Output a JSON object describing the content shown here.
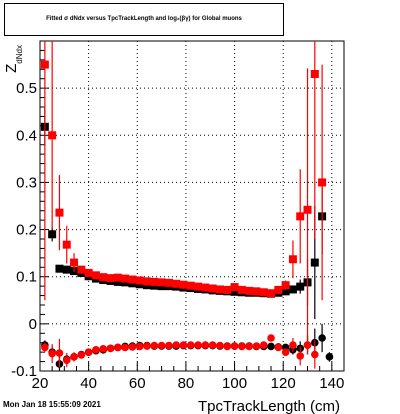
{
  "title": "Fitted σ dNdx versus TpcTrackLength and log₂(βγ) for Global muons",
  "footer": "Mon Jan 18 15:55:09 2021",
  "chart_data": {
    "type": "scatter",
    "xlabel": "TpcTrackLength (cm)",
    "ylabel": "Z dNdx",
    "xlim": [
      20,
      145
    ],
    "ylim": [
      -0.1,
      0.6
    ],
    "xticks": [
      20,
      40,
      60,
      80,
      100,
      120,
      140
    ],
    "yticks": [
      -0.1,
      0,
      0.1,
      0.2,
      0.3,
      0.4,
      0.5
    ],
    "grid": true,
    "series": [
      {
        "color": "#000000",
        "marker": "square",
        "x": [
          22,
          25,
          28,
          31,
          34,
          37,
          40,
          43,
          46,
          49,
          52,
          55,
          58,
          61,
          64,
          67,
          70,
          73,
          76,
          79,
          82,
          85,
          88,
          91,
          94,
          97,
          100,
          103,
          106,
          109,
          112,
          115,
          118,
          121,
          124,
          127,
          130,
          133,
          136
        ],
        "y": [
          0.418,
          0.19,
          0.117,
          0.115,
          0.112,
          0.108,
          0.101,
          0.096,
          0.093,
          0.091,
          0.089,
          0.088,
          0.086,
          0.084,
          0.082,
          0.081,
          0.08,
          0.08,
          0.079,
          0.077,
          0.076,
          0.074,
          0.073,
          0.071,
          0.07,
          0.069,
          0.068,
          0.067,
          0.066,
          0.066,
          0.065,
          0.064,
          0.066,
          0.069,
          0.073,
          0.079,
          0.088,
          0.13,
          0.228
        ],
        "err": [
          0.04,
          0.015,
          0.006,
          0.004,
          0.004,
          0.003,
          0.003,
          0.003,
          0.003,
          0.003,
          0.003,
          0.003,
          0.003,
          0.003,
          0.003,
          0.003,
          0.003,
          0.003,
          0.003,
          0.003,
          0.003,
          0.003,
          0.003,
          0.003,
          0.003,
          0.003,
          0.003,
          0.003,
          0.003,
          0.003,
          0.003,
          0.004,
          0.004,
          0.005,
          0.008,
          0.015,
          0.05,
          0.12,
          0.08
        ]
      },
      {
        "color": "#ff0000",
        "marker": "square",
        "x": [
          22,
          25,
          28,
          31,
          34,
          37,
          40,
          43,
          46,
          49,
          52,
          55,
          58,
          61,
          64,
          67,
          70,
          73,
          76,
          79,
          82,
          85,
          88,
          91,
          94,
          97,
          100,
          103,
          106,
          109,
          112,
          115,
          118,
          121,
          124,
          127,
          130,
          133,
          136
        ],
        "y": [
          0.55,
          0.4,
          0.236,
          0.168,
          0.13,
          0.115,
          0.108,
          0.103,
          0.099,
          0.097,
          0.098,
          0.096,
          0.094,
          0.092,
          0.09,
          0.089,
          0.088,
          0.087,
          0.085,
          0.083,
          0.081,
          0.079,
          0.077,
          0.075,
          0.073,
          0.072,
          0.078,
          0.072,
          0.07,
          0.069,
          0.067,
          0.065,
          0.072,
          0.082,
          0.137,
          0.228,
          0.242,
          0.53,
          0.3
        ],
        "err": [
          0.5,
          0.2,
          0.08,
          0.04,
          0.02,
          0.008,
          0.005,
          0.004,
          0.003,
          0.003,
          0.003,
          0.003,
          0.003,
          0.003,
          0.003,
          0.003,
          0.003,
          0.003,
          0.003,
          0.003,
          0.003,
          0.003,
          0.003,
          0.003,
          0.003,
          0.003,
          0.003,
          0.003,
          0.003,
          0.003,
          0.003,
          0.004,
          0.005,
          0.01,
          0.04,
          0.1,
          0.3,
          0.35,
          0.25
        ]
      },
      {
        "color": "#000000",
        "marker": "circle",
        "x": [
          22,
          25,
          28,
          31,
          34,
          37,
          40,
          43,
          46,
          49,
          52,
          55,
          58,
          61,
          64,
          67,
          70,
          73,
          76,
          79,
          82,
          85,
          88,
          91,
          94,
          97,
          100,
          103,
          106,
          109,
          112,
          115,
          118,
          121,
          124,
          127,
          130,
          133,
          136,
          139
        ],
        "y": [
          -0.045,
          -0.06,
          -0.085,
          -0.075,
          -0.07,
          -0.065,
          -0.06,
          -0.057,
          -0.055,
          -0.052,
          -0.05,
          -0.048,
          -0.047,
          -0.046,
          -0.046,
          -0.047,
          -0.047,
          -0.047,
          -0.047,
          -0.046,
          -0.046,
          -0.046,
          -0.046,
          -0.046,
          -0.047,
          -0.047,
          -0.047,
          -0.047,
          -0.047,
          -0.048,
          -0.048,
          -0.048,
          -0.049,
          -0.05,
          -0.055,
          -0.052,
          -0.045,
          -0.04,
          -0.03,
          -0.07
        ],
        "err": [
          0.01,
          0.012,
          0.02,
          0.01,
          0.008,
          0.006,
          0.005,
          0.004,
          0.004,
          0.003,
          0.003,
          0.003,
          0.003,
          0.003,
          0.003,
          0.003,
          0.003,
          0.003,
          0.003,
          0.003,
          0.003,
          0.003,
          0.003,
          0.003,
          0.003,
          0.003,
          0.003,
          0.003,
          0.003,
          0.003,
          0.003,
          0.004,
          0.004,
          0.005,
          0.01,
          0.015,
          0.02,
          0.03,
          0.03,
          0.01
        ]
      },
      {
        "color": "#ff0000",
        "marker": "circle",
        "x": [
          22,
          25,
          28,
          31,
          34,
          37,
          40,
          43,
          46,
          49,
          52,
          55,
          58,
          61,
          64,
          67,
          70,
          73,
          76,
          79,
          82,
          85,
          88,
          91,
          94,
          97,
          100,
          103,
          106,
          109,
          112,
          115,
          118,
          121,
          124,
          127,
          130,
          133
        ],
        "y": [
          -0.05,
          -0.063,
          -0.062,
          -0.077,
          -0.07,
          -0.066,
          -0.06,
          -0.055,
          -0.053,
          -0.052,
          -0.05,
          -0.05,
          -0.049,
          -0.048,
          -0.047,
          -0.046,
          -0.046,
          -0.046,
          -0.045,
          -0.045,
          -0.045,
          -0.045,
          -0.045,
          -0.045,
          -0.046,
          -0.048,
          -0.047,
          -0.048,
          -0.048,
          -0.047,
          -0.045,
          -0.03,
          -0.05,
          -0.06,
          -0.045,
          -0.068,
          -0.045,
          -0.065
        ],
        "err": [
          0.01,
          0.02,
          0.03,
          0.015,
          0.01,
          0.006,
          0.005,
          0.004,
          0.004,
          0.003,
          0.003,
          0.003,
          0.003,
          0.003,
          0.003,
          0.003,
          0.003,
          0.003,
          0.003,
          0.003,
          0.003,
          0.003,
          0.003,
          0.003,
          0.003,
          0.003,
          0.003,
          0.003,
          0.003,
          0.003,
          0.003,
          0.004,
          0.005,
          0.006,
          0.015,
          0.02,
          0.02,
          0.03
        ]
      }
    ]
  }
}
